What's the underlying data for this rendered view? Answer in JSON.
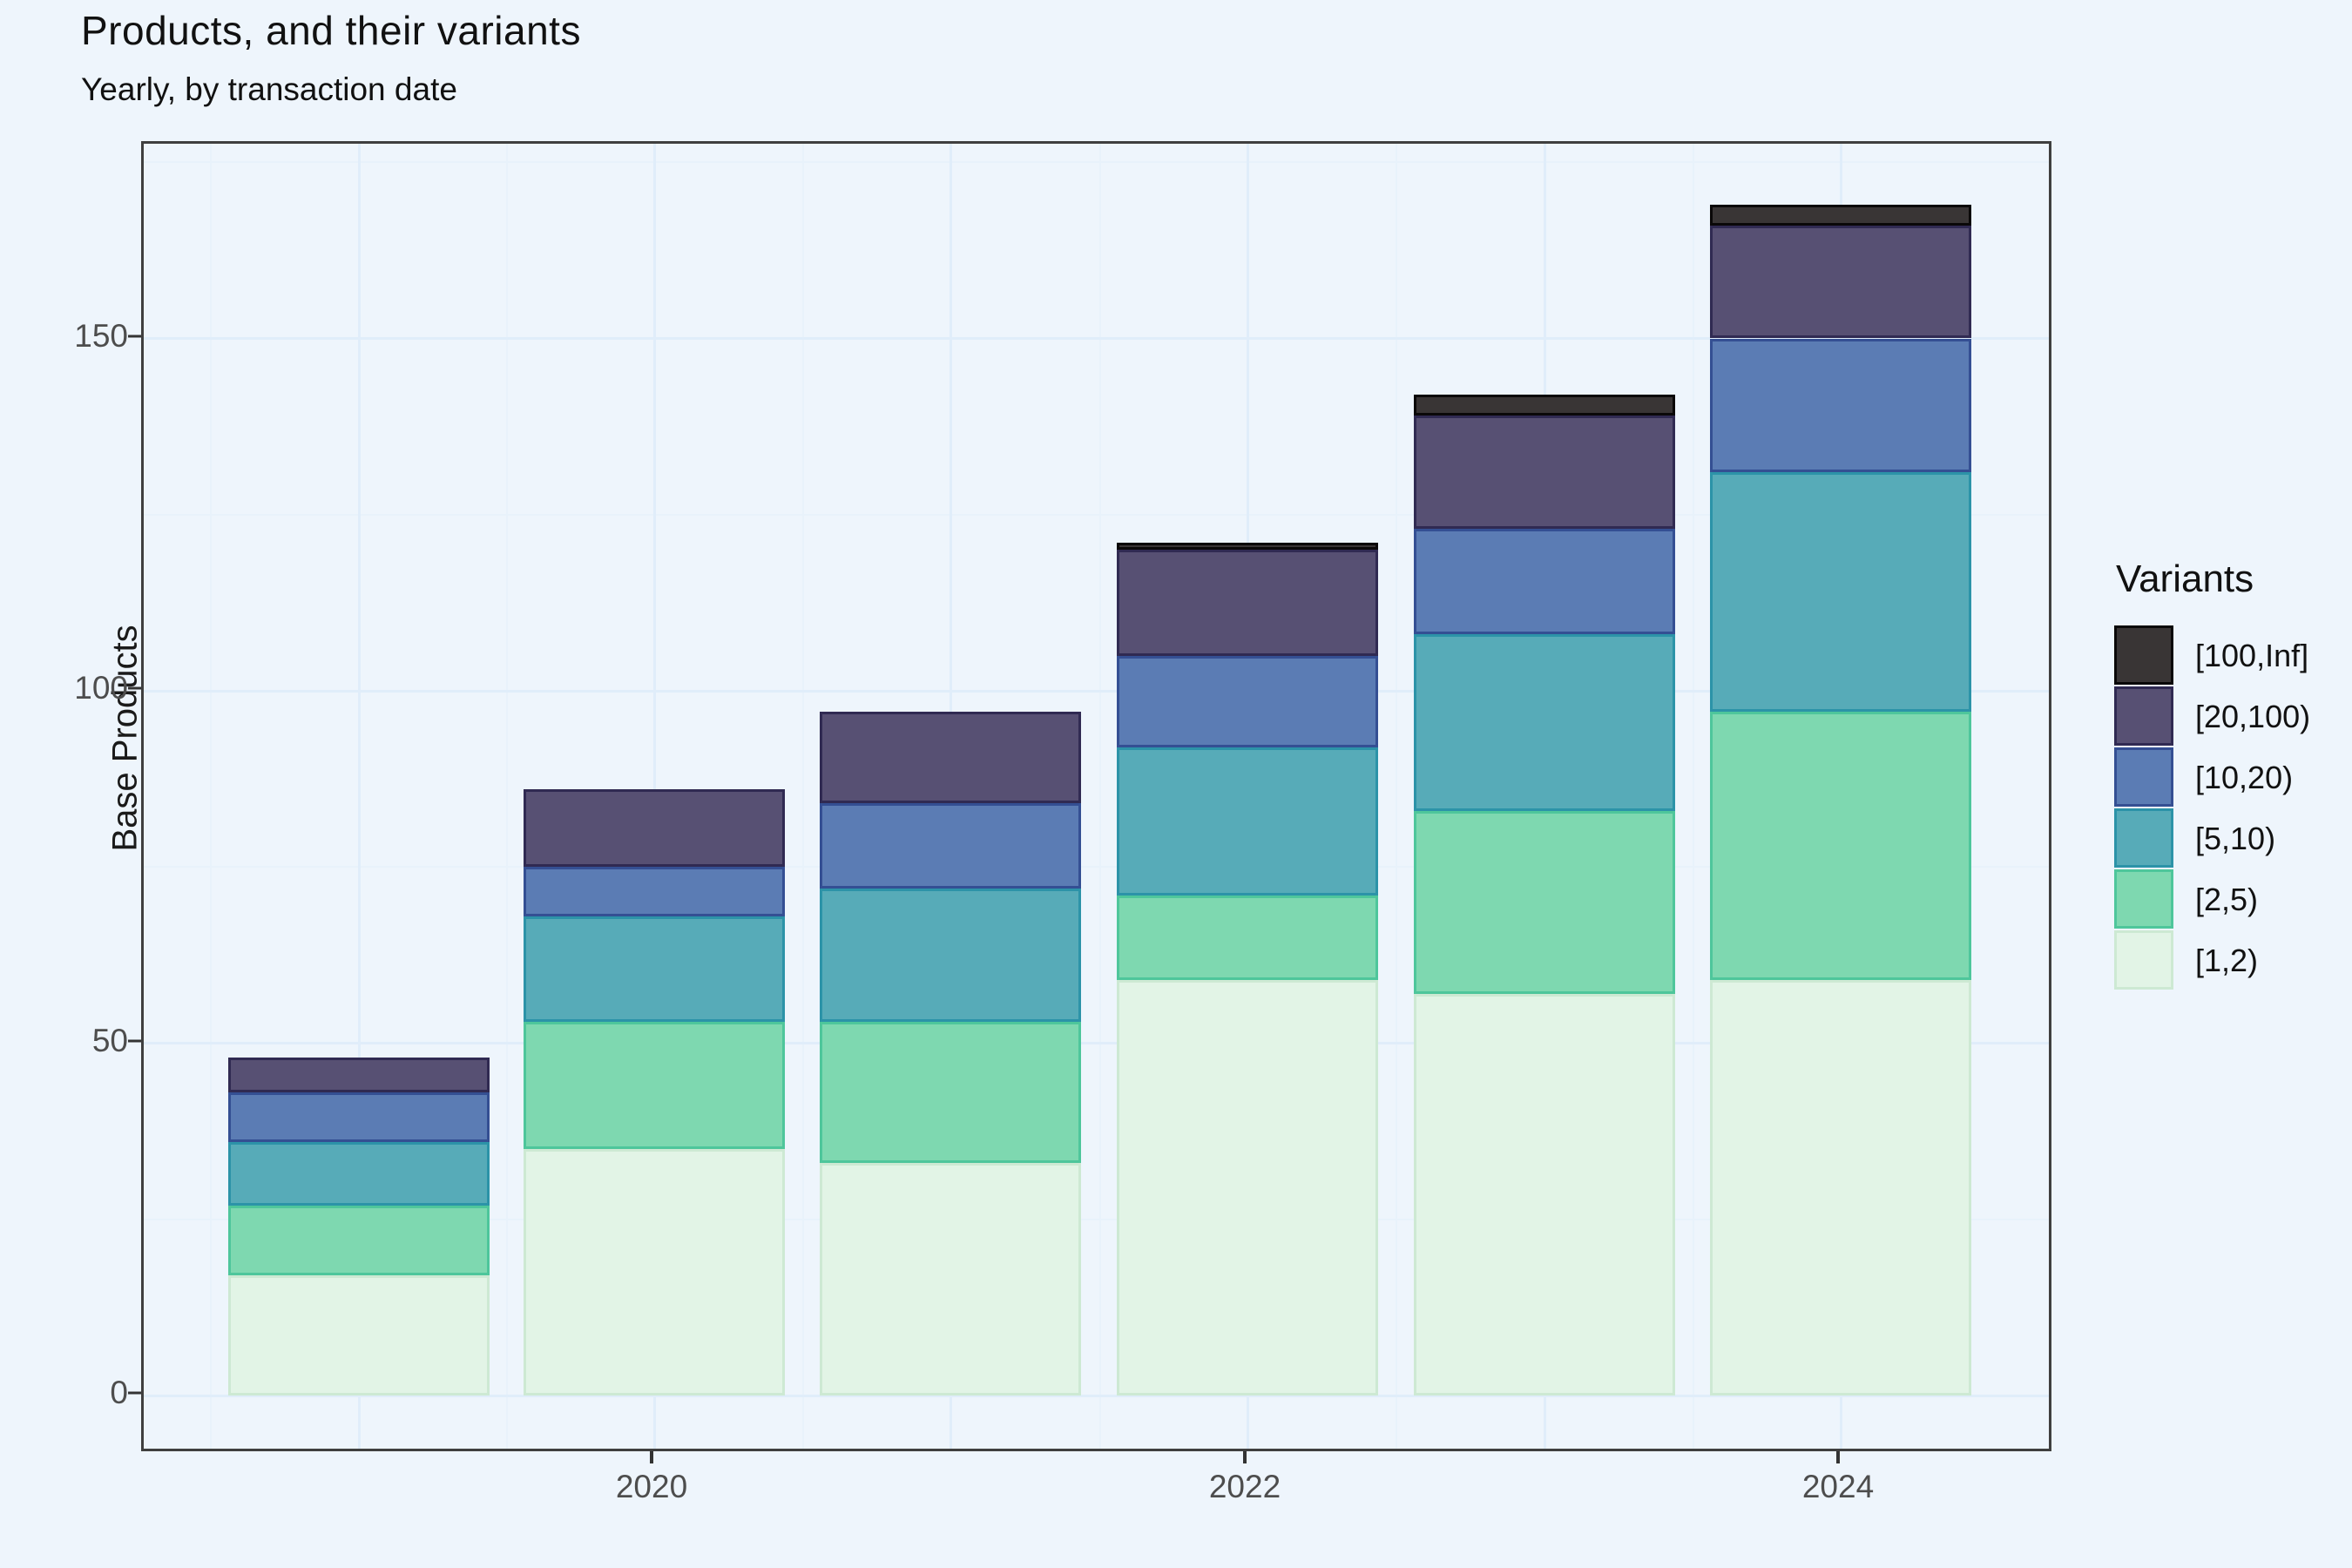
{
  "title": "Products, and their variants",
  "subtitle": "Yearly, by transaction date",
  "y_axis": {
    "title": "Base Products",
    "tick_values": [
      0,
      50,
      100,
      150
    ],
    "tick_labels": [
      "0",
      "50",
      "100",
      "150"
    ]
  },
  "x_axis": {
    "tick_labels": [
      "2020",
      "2022",
      "2024"
    ],
    "tick_years": [
      2020,
      2022,
      2024
    ]
  },
  "legend": {
    "title": "Variants",
    "items": [
      "[100,Inf]",
      "[20,100)",
      "[10,20)",
      "[5,10)",
      "[2,5)",
      "[1,2)"
    ]
  },
  "colors": {
    "background": "#eef5fc",
    "panel_border": "#3f3f3f",
    "gridline_major": "#e0edfa",
    "gridline_minor": "#e8f2fb",
    "axis_text": "#4d4d4d",
    "text": "#111111"
  },
  "chart_data": {
    "type": "bar",
    "stacked": true,
    "title": "Products, and their variants",
    "subtitle": "Yearly, by transaction date",
    "xlabel": "",
    "ylabel": "Base Products",
    "ylim": [
      0,
      177
    ],
    "grid": true,
    "legend_position": "right",
    "legend_title": "Variants",
    "categories": [
      2019,
      2020,
      2021,
      2022,
      2023,
      2024
    ],
    "x_tick_labels_shown": [
      "2020",
      "2022",
      "2024"
    ],
    "series": [
      {
        "name": "[1,2)",
        "fill": "#e2f4e6",
        "stroke": "#cde9d3",
        "values": [
          17,
          35,
          33,
          59,
          57,
          59
        ]
      },
      {
        "name": "[2,5)",
        "fill": "#7ed8b0",
        "stroke": "#4ec69b",
        "values": [
          10,
          18,
          20,
          12,
          26,
          38
        ]
      },
      {
        "name": "[5,10)",
        "fill": "#57abb8",
        "stroke": "#2c93a8",
        "values": [
          9,
          15,
          19,
          21,
          25,
          34
        ]
      },
      {
        "name": "[10,20)",
        "fill": "#5b7cb4",
        "stroke": "#344f93",
        "values": [
          7,
          7,
          12,
          13,
          15,
          19
        ]
      },
      {
        "name": "[20,100)",
        "fill": "#575073",
        "stroke": "#302a52",
        "values": [
          5,
          11,
          13,
          15,
          16,
          16
        ]
      },
      {
        "name": "[100,Inf]",
        "fill": "#393535",
        "stroke": "#0a0808",
        "values": [
          0,
          0,
          0,
          1,
          3,
          3
        ]
      }
    ],
    "totals": [
      48,
      86,
      97,
      121,
      142,
      169
    ]
  }
}
